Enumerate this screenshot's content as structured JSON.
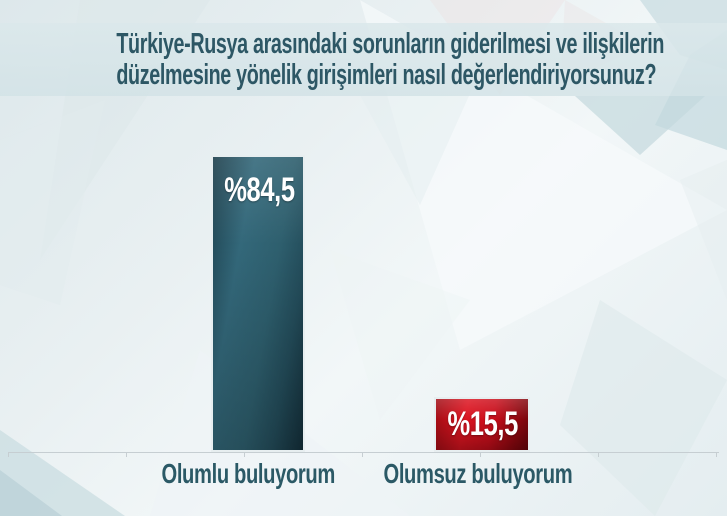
{
  "title_lines": [
    "Türkiye-Rusya arasındaki sorunların giderilmesi ve ilişkilerin",
    "düzelmesine yönelik girişimleri nasıl değerlendiriyorsunuz?"
  ],
  "chart_data": {
    "type": "bar",
    "title": "Türkiye-Rusya arasındaki sorunların giderilmesi ve ilişkilerin düzelmesine yönelik girişimleri nasıl değerlendiriyorsunuz?",
    "categories": [
      "Olumlu buluyorum",
      "Olumsuz buluyorum"
    ],
    "values": [
      84.5,
      15.5
    ],
    "value_labels": [
      "%84,5",
      "%15,5"
    ],
    "series_colors": [
      "#2e5f6e",
      "#c90e1b"
    ],
    "ylabel": "",
    "xlabel": "",
    "ylim": [
      0,
      100
    ],
    "grid": false,
    "legend": false
  },
  "colors": {
    "title_text": "#2d5765",
    "positive_bar": "#2e5f6e",
    "negative_bar": "#c90e1b",
    "value_text": "#ffffff"
  }
}
